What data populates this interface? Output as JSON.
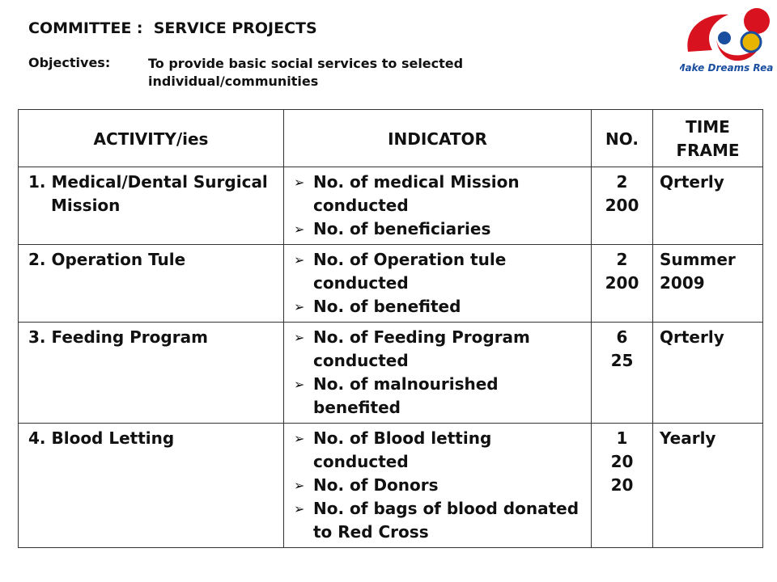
{
  "header": {
    "title": "COMMITTEE :  SERVICE PROJECTS",
    "objectives_label": "Objectives:",
    "objectives_text": "To provide basic social services to selected individual/communities"
  },
  "logo": {
    "text": "Make Dreams Real"
  },
  "table": {
    "columns": [
      "ACTIVITY/ies",
      "INDICATOR",
      "NO.",
      "TIME FRAME"
    ],
    "rows": [
      {
        "activity": "1. Medical/Dental Surgical Mission",
        "indicators": [
          "No. of medical Mission conducted",
          "No. of beneficiaries"
        ],
        "numbers": [
          2,
          200
        ],
        "time_frame": "Qrterly"
      },
      {
        "activity": "2. Operation Tule",
        "indicators": [
          "No. of Operation tule conducted",
          "No. of benefited"
        ],
        "numbers": [
          2,
          200
        ],
        "time_frame": "Summer 2009"
      },
      {
        "activity": "3. Feeding Program",
        "indicators": [
          "No. of Feeding Program conducted",
          "No. of malnourished benefited"
        ],
        "numbers": [
          6,
          25
        ],
        "time_frame": "Qrterly"
      },
      {
        "activity": "4. Blood Letting",
        "indicators": [
          "No. of Blood letting conducted",
          "No. of Donors",
          "No. of bags of blood donated to Red Cross"
        ],
        "numbers": [
          1,
          20,
          20
        ],
        "time_frame": "Yearly"
      }
    ]
  }
}
